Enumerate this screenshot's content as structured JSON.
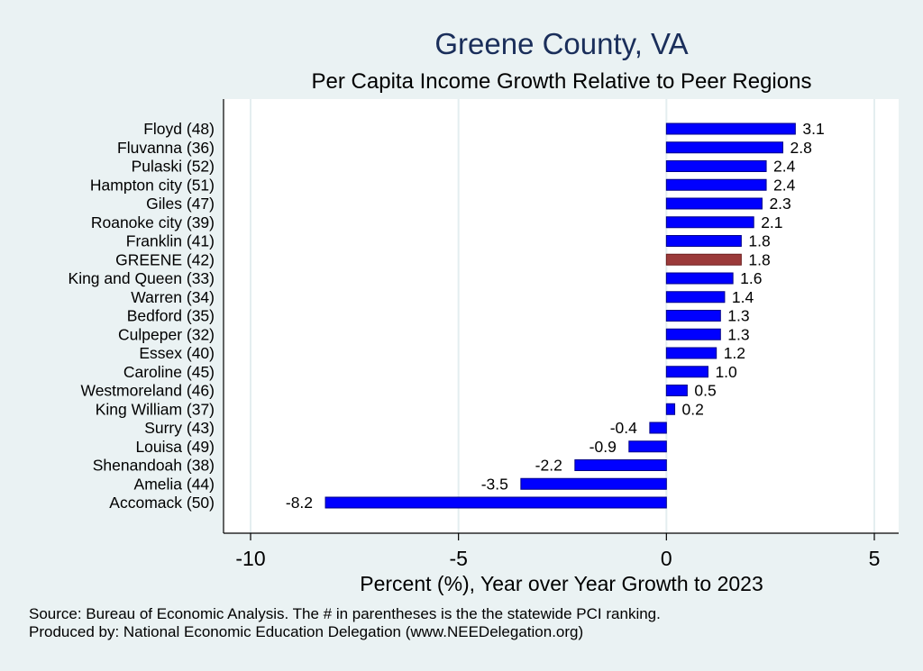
{
  "chart_data": {
    "type": "bar",
    "orientation": "horizontal",
    "title": "Greene County, VA",
    "subtitle": "Per Capita Income Growth Relative to Peer Regions",
    "xlabel": "Percent (%), Year over Year Growth to 2023",
    "ylabel": "",
    "xlim": [
      -10,
      5.5
    ],
    "xticks": [
      -10,
      -5,
      0,
      5
    ],
    "grid": true,
    "categories": [
      "Floyd (48)",
      "Fluvanna (36)",
      "Pulaski (52)",
      "Hampton city (51)",
      "Giles (47)",
      "Roanoke city (39)",
      "Franklin (41)",
      "GREENE (42)",
      "King and Queen (33)",
      "Warren (34)",
      "Bedford (35)",
      "Culpeper (32)",
      "Essex (40)",
      "Caroline (45)",
      "Westmoreland (46)",
      "King William (37)",
      "Surry (43)",
      "Louisa (49)",
      "Shenandoah (38)",
      "Amelia (44)",
      "Accomack (50)"
    ],
    "values": [
      3.1,
      2.8,
      2.4,
      2.4,
      2.3,
      2.1,
      1.8,
      1.8,
      1.6,
      1.4,
      1.3,
      1.3,
      1.2,
      1.0,
      0.5,
      0.2,
      -0.4,
      -0.9,
      -2.2,
      -3.5,
      -8.2
    ],
    "value_labels": [
      "3.1",
      "2.8",
      "2.4",
      "2.4",
      "2.3",
      "2.1",
      "1.8",
      "1.8",
      "1.6",
      "1.4",
      "1.3",
      "1.3",
      "1.2",
      "1.0",
      "0.5",
      "0.2",
      "-0.4",
      "-0.9",
      "-2.2",
      "-3.5",
      "-8.2"
    ],
    "highlight": "GREENE (42)",
    "colors": {
      "bar": "#0000ff",
      "highlight": "#9b3a3a",
      "title": "#1a2e5a",
      "grid": "#e4eef0",
      "background": "#eaf2f3",
      "plot": "#ffffff"
    }
  },
  "footer": {
    "source": "Source: Bureau of Economic Analysis. The # in parentheses is the the statewide PCI ranking.",
    "produced": "Produced by: National Economic Education Delegation (www.NEEDelegation.org)"
  }
}
